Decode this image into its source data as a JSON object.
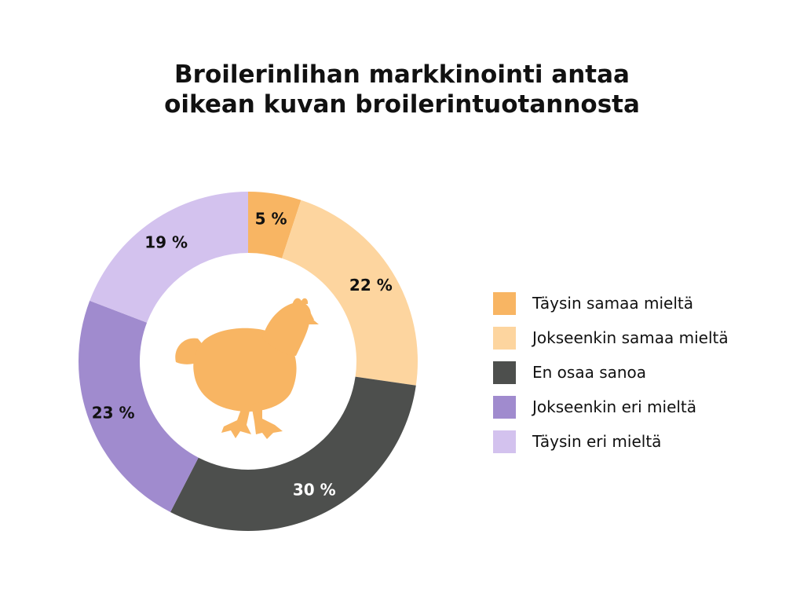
{
  "chart_data": {
    "type": "pie",
    "variant": "donut",
    "title_lines": [
      "Broilerinlihan markkinointi antaa",
      "oikean kuvan broilerintuotannosta"
    ],
    "categories": [
      "Täysin samaa mieltä",
      "Jokseenkin samaa mieltä",
      "En osaa sanoa",
      "Jokseenkin eri mieltä",
      "Täysin eri mieltä"
    ],
    "values": [
      5,
      22,
      30,
      23,
      19
    ],
    "data_labels": [
      "5 %",
      "22 %",
      "30 %",
      "23 %",
      "19 %"
    ],
    "colors": [
      "#F8B563",
      "#FDD59F",
      "#4D4F4D",
      "#A08BCE",
      "#D3C2EE"
    ],
    "label_colors": [
      "#111111",
      "#111111",
      "#ffffff",
      "#111111",
      "#111111"
    ],
    "legend_position": "right",
    "center_icon": "chicken-icon",
    "center_icon_color": "#F8B563"
  }
}
